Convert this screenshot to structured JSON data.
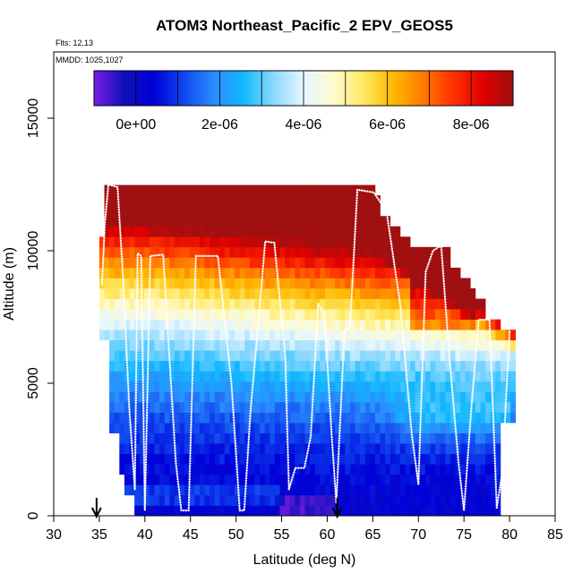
{
  "chart_data": {
    "type": "heatmap",
    "title": "ATOM3 Northeast_Pacific_2 EPV_GEOS5",
    "subtitle_lines": [
      "Flts: 12,13",
      "MMDD: 1025,1027"
    ],
    "xlabel": "Latitude (deg N)",
    "ylabel": "Altitude (m)",
    "xlim": [
      30,
      85
    ],
    "ylim": [
      0,
      17500
    ],
    "x_ticks": [
      30,
      35,
      40,
      45,
      50,
      55,
      60,
      65,
      70,
      75,
      80,
      85
    ],
    "y_ticks": [
      0,
      5000,
      10000,
      15000
    ],
    "y_tick_labels": [
      "0",
      "5000",
      "10000",
      "15000"
    ],
    "colorbar": {
      "min": -1e-06,
      "max": 9e-06,
      "tick_values": [
        0,
        2e-06,
        4e-06,
        6e-06,
        8e-06
      ],
      "tick_labels": [
        "0e+00",
        "2e-06",
        "4e-06",
        "6e-06",
        "8e-06"
      ],
      "colors": [
        "#7a1ce6",
        "#1010b8",
        "#0000d8",
        "#1046ee",
        "#2a8cff",
        "#12b8ff",
        "#8ad8ff",
        "#e6f6ff",
        "#fffbd0",
        "#ffe860",
        "#ffb800",
        "#ff7a00",
        "#ff3000",
        "#e00000",
        "#a01010"
      ]
    },
    "flight_track": [
      [
        35.3,
        8700
      ],
      [
        35.6,
        11000
      ],
      [
        36.0,
        12500
      ],
      [
        37.0,
        12400
      ],
      [
        37.6,
        9000
      ],
      [
        38.3,
        4000
      ],
      [
        38.9,
        1000
      ],
      [
        39.2,
        9900
      ],
      [
        39.6,
        9800
      ],
      [
        40.0,
        200
      ],
      [
        40.6,
        9800
      ],
      [
        42.0,
        9850
      ],
      [
        43.4,
        2000
      ],
      [
        44.0,
        200
      ],
      [
        44.8,
        200
      ],
      [
        45.6,
        9800
      ],
      [
        48.0,
        9800
      ],
      [
        49.5,
        5000
      ],
      [
        50.4,
        200
      ],
      [
        50.9,
        200
      ],
      [
        51.6,
        4000
      ],
      [
        52.5,
        7500
      ],
      [
        53.2,
        10350
      ],
      [
        54.2,
        10300
      ],
      [
        55.4,
        6000
      ],
      [
        55.8,
        1000
      ],
      [
        56.5,
        1800
      ],
      [
        57.5,
        1800
      ],
      [
        58.2,
        3000
      ],
      [
        59.0,
        8000
      ],
      [
        59.7,
        7600
      ],
      [
        60.5,
        3000
      ],
      [
        61.0,
        500
      ],
      [
        61.9,
        7000
      ],
      [
        62.5,
        7100
      ],
      [
        63.3,
        12300
      ],
      [
        65.1,
        12200
      ],
      [
        66.5,
        11500
      ],
      [
        68.0,
        8000
      ],
      [
        69.3,
        3000
      ],
      [
        70.0,
        1200
      ],
      [
        70.8,
        9200
      ],
      [
        71.6,
        10000
      ],
      [
        72.5,
        10200
      ],
      [
        73.4,
        6000
      ],
      [
        74.4,
        2000
      ],
      [
        75.0,
        200
      ],
      [
        75.8,
        4000
      ],
      [
        76.6,
        7400
      ],
      [
        77.8,
        7400
      ],
      [
        78.6,
        300
      ],
      [
        79.2,
        1600
      ],
      [
        80.0,
        7000
      ]
    ],
    "markers": [
      {
        "label": "start",
        "x": 34.7
      },
      {
        "label": "end",
        "x": 61.1
      }
    ]
  }
}
